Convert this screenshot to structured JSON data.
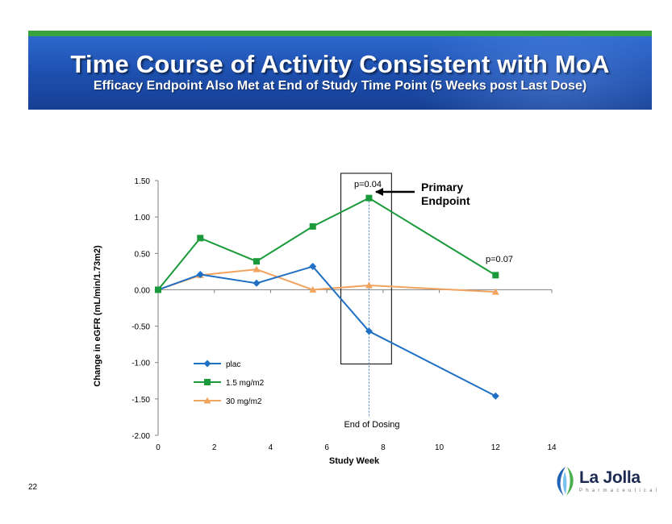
{
  "slide": {
    "title": "Time Course of Activity Consistent with MoA",
    "subtitle": "Efficacy Endpoint Also Met at End of Study Time Point (5 Weeks post Last Dose)",
    "page_number": "22"
  },
  "logo": {
    "name": "La Jolla",
    "tagline": "Pharmaceutical"
  },
  "colors": {
    "banner": "#1d4fae",
    "banner_stripe": "#3aa33e",
    "plac": "#1f6fc4",
    "dose_low": "#1a9a3a",
    "dose_high": "#f2a35e",
    "axis": "#808080"
  },
  "chart_data": {
    "type": "line",
    "title": "",
    "xlabel": "Study Week",
    "ylabel": "Change in eGFR (mL/min/1.73m2)",
    "xlim": [
      0,
      14
    ],
    "ylim": [
      -2.0,
      1.5
    ],
    "x_ticks": [
      0,
      2,
      4,
      6,
      8,
      10,
      12,
      14
    ],
    "y_ticks": [
      1.5,
      1.0,
      0.5,
      0.0,
      -0.5,
      -1.0,
      -1.5,
      -2.0
    ],
    "x_tick_labels": [
      "0",
      "2",
      "4",
      "6",
      "8",
      "10",
      "12",
      "14"
    ],
    "y_tick_labels": [
      "1.50",
      "1.00",
      "0.50",
      "0.00",
      "-0.50",
      "-1.00",
      "-1.50",
      "-2.00"
    ],
    "grid": false,
    "legend_position": "lower-left",
    "series": [
      {
        "name": "plac",
        "marker": "diamond",
        "color": "#1f6fc4",
        "x": [
          0,
          1.5,
          3.5,
          5.5,
          7.5,
          12
        ],
        "y": [
          0.0,
          0.21,
          0.09,
          0.32,
          -0.57,
          -1.46
        ]
      },
      {
        "name": "1.5 mg/m2",
        "marker": "square",
        "color": "#1a9a3a",
        "x": [
          0,
          1.5,
          3.5,
          5.5,
          7.5,
          12
        ],
        "y": [
          0.0,
          0.71,
          0.39,
          0.87,
          1.26,
          0.2
        ]
      },
      {
        "name": "30 mg/m2",
        "marker": "triangle",
        "color": "#f2a35e",
        "x": [
          0,
          1.5,
          3.5,
          5.5,
          7.5,
          12
        ],
        "y": [
          0.0,
          0.2,
          0.28,
          0.0,
          0.06,
          -0.03
        ]
      }
    ],
    "highlight_box": {
      "x_range": [
        6.5,
        8.3
      ],
      "y_range": [
        -1.02,
        1.6
      ]
    },
    "reference_line": {
      "x": 7.5,
      "label": "End of Dosing"
    },
    "annotations": [
      {
        "text": "p=0.04",
        "x": 7.5,
        "y": 1.46
      },
      {
        "text": "p=0.07",
        "x": 12.2,
        "y": 0.42
      }
    ],
    "callout": {
      "line1": "Primary",
      "line2": "Endpoint"
    }
  }
}
